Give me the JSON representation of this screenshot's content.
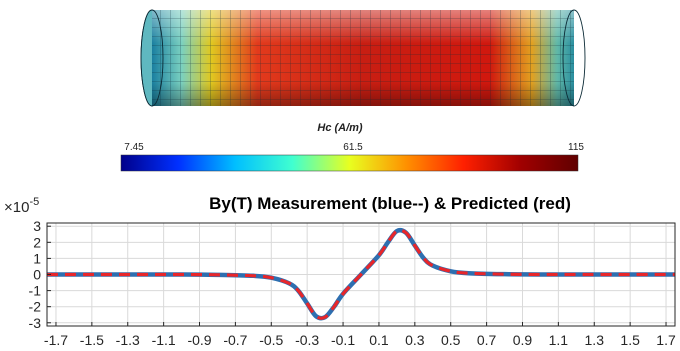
{
  "colors": {
    "series_blue": "#2e6fb0",
    "series_red": "#e8262a",
    "grid": "#d9d9d9",
    "axis": "#262626"
  },
  "colorbar": {
    "label": "Hc (A/m)",
    "min_label": "7.45",
    "mid_label": "61.5",
    "max_label": "115",
    "stops": [
      "#00008b",
      "#0030ff",
      "#00bfff",
      "#40ffd0",
      "#e8ff20",
      "#ff9000",
      "#ff2000",
      "#a00000",
      "#600000"
    ]
  },
  "chart_data": {
    "type": "line",
    "title": "By(T) Measurement (blue--) & Predicted  (red)",
    "y_exponent_label": "×10",
    "y_exponent": "-5",
    "xlim": [
      -1.75,
      1.75
    ],
    "ylim": [
      -3.2,
      3.2
    ],
    "x_ticks": [
      "-1.7",
      "-1.5",
      "-1.3",
      "-1.1",
      "-0.9",
      "-0.7",
      "-0.5",
      "-0.3",
      "-0.1",
      "0.1",
      "0.3",
      "0.5",
      "0.7",
      "0.9",
      "1.1",
      "1.3",
      "1.5",
      "1.7"
    ],
    "y_ticks": [
      "3",
      "2",
      "1",
      "0",
      "-1",
      "-2",
      "-3"
    ],
    "grid": true,
    "series": [
      {
        "name": "Measurement",
        "style": "dashed",
        "x": [
          -1.75,
          -1.5,
          -1.2,
          -1.0,
          -0.8,
          -0.6,
          -0.5,
          -0.4,
          -0.35,
          -0.3,
          -0.25,
          -0.2,
          -0.15,
          -0.1,
          0.0,
          0.1,
          0.15,
          0.2,
          0.25,
          0.3,
          0.35,
          0.4,
          0.5,
          0.6,
          0.8,
          1.0,
          1.2,
          1.5,
          1.75
        ],
        "values": [
          0.0,
          0.0,
          0.0,
          0.0,
          -0.02,
          -0.08,
          -0.2,
          -0.55,
          -1.0,
          -1.8,
          -2.6,
          -2.65,
          -2.0,
          -1.2,
          0.0,
          1.2,
          2.0,
          2.7,
          2.6,
          1.8,
          1.0,
          0.55,
          0.2,
          0.08,
          0.02,
          0.0,
          0.0,
          0.0,
          0.0
        ]
      },
      {
        "name": "Predicted",
        "style": "dashed",
        "x": [
          -1.75,
          -1.5,
          -1.2,
          -1.0,
          -0.8,
          -0.6,
          -0.5,
          -0.4,
          -0.35,
          -0.3,
          -0.25,
          -0.2,
          -0.15,
          -0.1,
          0.0,
          0.1,
          0.15,
          0.2,
          0.25,
          0.3,
          0.35,
          0.4,
          0.5,
          0.6,
          0.8,
          1.0,
          1.2,
          1.5,
          1.75
        ],
        "values": [
          0.0,
          0.0,
          0.0,
          0.0,
          -0.02,
          -0.08,
          -0.2,
          -0.55,
          -1.0,
          -1.8,
          -2.6,
          -2.65,
          -2.0,
          -1.2,
          0.0,
          1.2,
          2.0,
          2.7,
          2.6,
          1.8,
          1.0,
          0.55,
          0.2,
          0.08,
          0.02,
          0.0,
          0.0,
          0.0,
          0.0
        ]
      }
    ]
  }
}
